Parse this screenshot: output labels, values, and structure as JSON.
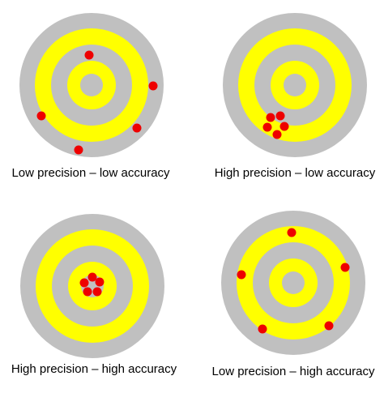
{
  "colors": {
    "ring_gray": "#c0c0c0",
    "ring_yellow": "#ffff00",
    "shot_red": "#ee0000",
    "background": "#ffffff",
    "text": "#000000"
  },
  "targets": [
    {
      "caption": "Low precision – low accuracy",
      "precision": "low",
      "accuracy": "low"
    },
    {
      "caption": "High precision  – low accuracy",
      "precision": "high",
      "accuracy": "low"
    },
    {
      "caption": "High precision  – high accuracy",
      "precision": "high",
      "accuracy": "high"
    },
    {
      "caption": "Low precision – high accuracy",
      "precision": "low",
      "accuracy": "high"
    }
  ]
}
